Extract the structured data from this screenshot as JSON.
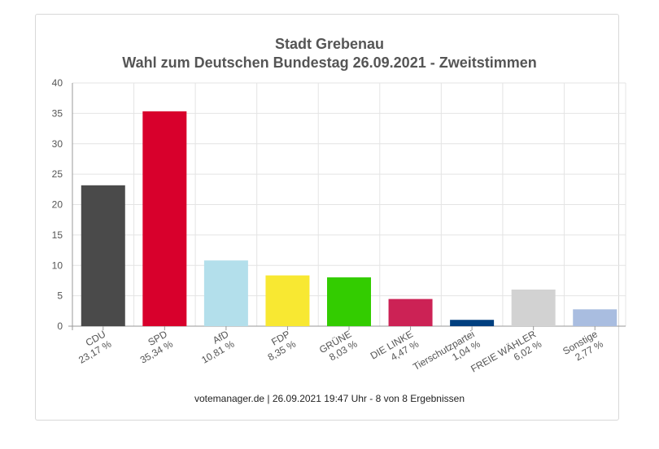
{
  "chart_data": {
    "type": "bar",
    "title": "Stadt Grebenau",
    "subtitle": "Wahl zum Deutschen Bundestag 26.09.2021  - Zweitstimmen",
    "categories": [
      "CDU",
      "SPD",
      "AfD",
      "FDP",
      "GRÜNE",
      "DIE LINKE",
      "Tierschutzpartei",
      "FREIE WÄHLER",
      "Sonstige"
    ],
    "value_labels": [
      "23,17 %",
      "35,34 %",
      "10,81 %",
      "8,35 %",
      "8,03 %",
      "4,47 %",
      "1,04 %",
      "6,02 %",
      "2,77 %"
    ],
    "values": [
      23.17,
      35.34,
      10.81,
      8.35,
      8.03,
      4.47,
      1.04,
      6.02,
      2.77
    ],
    "colors": [
      "#4a4a4a",
      "#d8002c",
      "#b3dfeb",
      "#f8e832",
      "#33cc00",
      "#cc2255",
      "#003f7f",
      "#d2d2d2",
      "#a9bde0"
    ],
    "ylim": [
      0,
      40
    ],
    "yticks": [
      0,
      5,
      10,
      15,
      20,
      25,
      30,
      35,
      40
    ],
    "grid": true,
    "footer": "votemanager.de | 26.09.2021 19:47 Uhr - 8 von 8 Ergebnissen"
  }
}
